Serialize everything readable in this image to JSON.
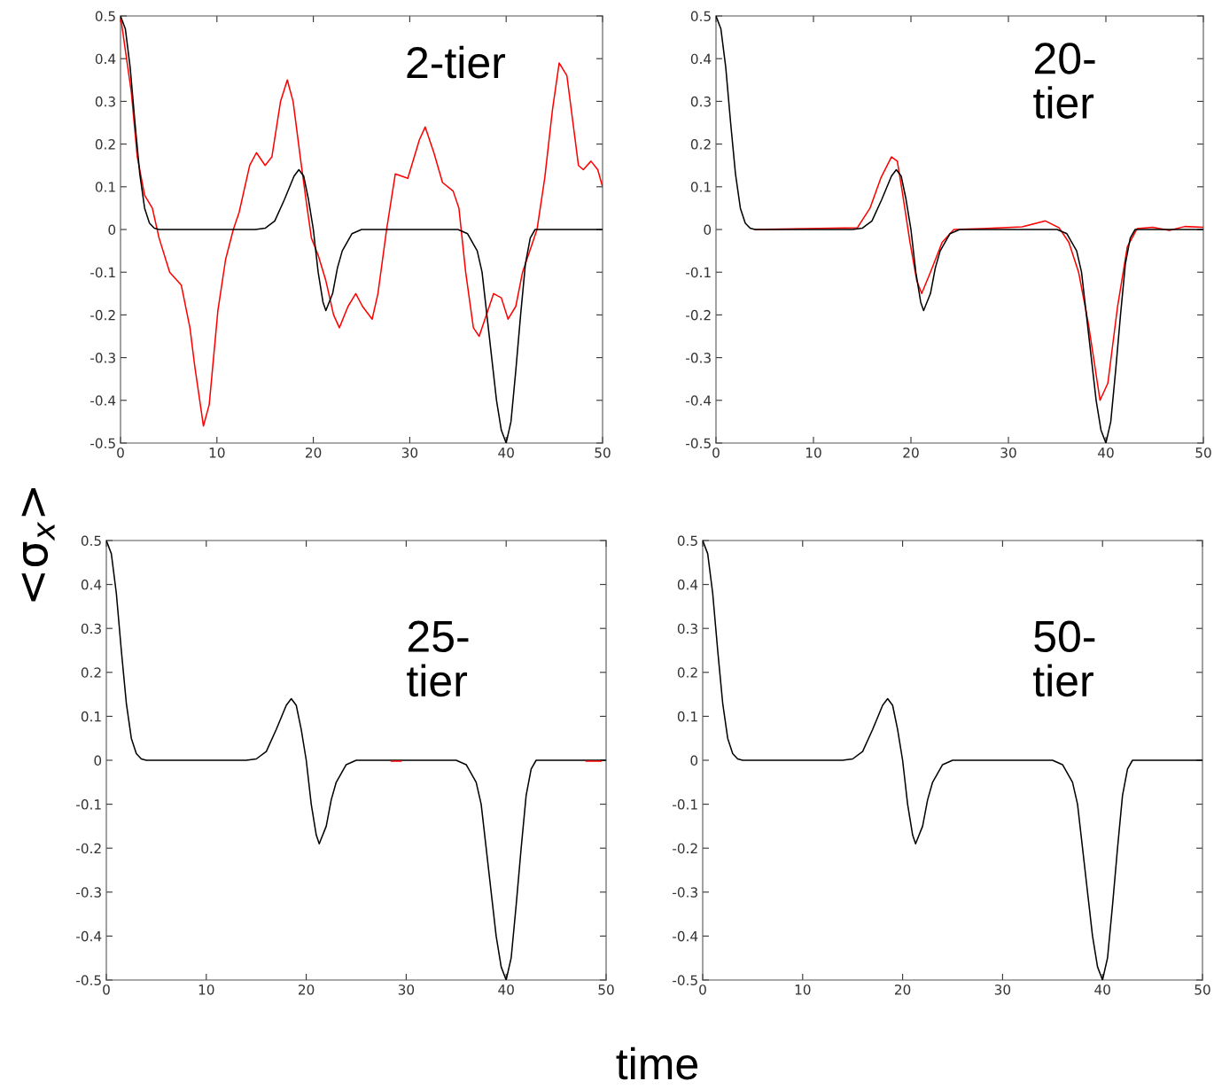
{
  "chart_data": [
    {
      "type": "line",
      "ylabel": "<σ$_{x}$>",
      "xlabel": "time",
      "annotations": [
        "2-tier"
      ],
      "xlim": [
        0,
        50
      ],
      "ylim": [
        -0.5,
        0.5
      ],
      "xticks": [
        0,
        10,
        20,
        30,
        40,
        50
      ],
      "yticks": [
        -0.5,
        -0.4,
        -0.3,
        -0.2,
        -0.1,
        0,
        0.1,
        0.2,
        0.3,
        0.4,
        0.5
      ],
      "grid": false,
      "series": [
        {
          "color": "#ff0000",
          "x": [
            0,
            1.13,
            1.74,
            2.5,
            3.3,
            4.0,
            5.1,
            6.3,
            7.2,
            7.7,
            8.6,
            9.2,
            10.1,
            10.9,
            11.7,
            12.3,
            13.4,
            14.1,
            15.0,
            15.7,
            16.6,
            17.3,
            17.9,
            18.7,
            19.3,
            19.8,
            20.5,
            21.3,
            22.1,
            22.7,
            23.6,
            24.4,
            25.1,
            26.1,
            26.7,
            27.6,
            28.5,
            29.8,
            31.0,
            31.6,
            32.5,
            33.4,
            34.5,
            35.1,
            35.8,
            36.6,
            37.2,
            37.8,
            38.7,
            39.5,
            40.2,
            41.0,
            41.7,
            43.2,
            44.0,
            44.8,
            45.5,
            46.3,
            47.5,
            48.0,
            48.8,
            49.5,
            50
          ],
          "values": [
            0.5,
            0.32,
            0.17,
            0.08,
            0.05,
            -0.02,
            -0.1,
            -0.13,
            -0.23,
            -0.32,
            -0.46,
            -0.41,
            -0.19,
            -0.07,
            0,
            0.04,
            0.15,
            0.18,
            0.15,
            0.17,
            0.3,
            0.35,
            0.3,
            0.16,
            0.06,
            -0.02,
            -0.06,
            -0.12,
            -0.2,
            -0.23,
            -0.18,
            -0.15,
            -0.18,
            -0.21,
            -0.15,
            0,
            0.13,
            0.12,
            0.21,
            0.24,
            0.18,
            0.11,
            0.09,
            0.05,
            -0.1,
            -0.23,
            -0.25,
            -0.21,
            -0.15,
            -0.16,
            -0.21,
            -0.18,
            -0.1,
            0,
            0.12,
            0.28,
            0.39,
            0.36,
            0.15,
            0.14,
            0.16,
            0.14,
            0.1
          ]
        },
        {
          "color": "#000000",
          "x": [
            0,
            0.5,
            1,
            1.5,
            2,
            2.5,
            3,
            3.5,
            4,
            14,
            15,
            16,
            17,
            18,
            18.5,
            19,
            19.5,
            20,
            20.5,
            21,
            21.3,
            22,
            22.5,
            23,
            24,
            25,
            35,
            36,
            37,
            37.5,
            38,
            38.5,
            39,
            39.5,
            40,
            40.5,
            41,
            41.5,
            42,
            42.5,
            43,
            50
          ],
          "values": [
            0.5,
            0.47,
            0.38,
            0.25,
            0.13,
            0.05,
            0.015,
            0.003,
            0,
            0,
            0.003,
            0.02,
            0.07,
            0.125,
            0.14,
            0.125,
            0.07,
            0,
            -0.1,
            -0.17,
            -0.19,
            -0.15,
            -0.09,
            -0.05,
            -0.01,
            0,
            0,
            -0.01,
            -0.05,
            -0.1,
            -0.2,
            -0.3,
            -0.4,
            -0.47,
            -0.5,
            -0.45,
            -0.33,
            -0.2,
            -0.08,
            -0.02,
            0,
            0
          ]
        }
      ]
    },
    {
      "type": "line",
      "annotations": [
        "20-\ntier"
      ],
      "xlim": [
        0,
        50
      ],
      "ylim": [
        -0.5,
        0.5
      ],
      "xticks": [
        0,
        10,
        20,
        30,
        40,
        50
      ],
      "yticks": [
        -0.5,
        -0.4,
        -0.3,
        -0.2,
        -0.1,
        0,
        0.1,
        0.2,
        0.3,
        0.4,
        0.5
      ],
      "grid": false,
      "series": [
        {
          "color": "#ff0000",
          "x": [
            4,
            14.5,
            15.8,
            16.9,
            18.0,
            18.6,
            19.1,
            19.9,
            20.6,
            21.1,
            22.0,
            23.2,
            24.4,
            27.3,
            31.4,
            33.8,
            35.2,
            36.2,
            37.2,
            38.2,
            39.4,
            40.2,
            41.2,
            42.2,
            43.2,
            44.8,
            46.5,
            48.1,
            50
          ],
          "values": [
            0,
            0.004,
            0.05,
            0.12,
            0.17,
            0.16,
            0.09,
            -0.03,
            -0.12,
            -0.15,
            -0.1,
            -0.03,
            0,
            0.002,
            0.006,
            0.02,
            0.004,
            -0.03,
            -0.1,
            -0.22,
            -0.4,
            -0.36,
            -0.18,
            -0.04,
            0.002,
            0.005,
            -0.002,
            0.007,
            0.005
          ]
        },
        {
          "color": "#000000",
          "x": [
            0,
            0.5,
            1,
            1.5,
            2,
            2.5,
            3,
            3.5,
            4,
            14,
            15,
            16,
            17,
            18,
            18.5,
            19,
            19.5,
            20,
            20.5,
            21,
            21.3,
            22,
            22.5,
            23,
            24,
            25,
            35,
            36,
            37,
            37.5,
            38,
            38.5,
            39,
            39.5,
            40,
            40.5,
            41,
            41.5,
            42,
            42.5,
            43,
            50
          ],
          "values": [
            0.5,
            0.47,
            0.38,
            0.25,
            0.13,
            0.05,
            0.015,
            0.003,
            0,
            0,
            0.003,
            0.02,
            0.07,
            0.125,
            0.14,
            0.125,
            0.07,
            0,
            -0.1,
            -0.17,
            -0.19,
            -0.15,
            -0.09,
            -0.05,
            -0.01,
            0,
            0,
            -0.01,
            -0.05,
            -0.1,
            -0.2,
            -0.3,
            -0.4,
            -0.47,
            -0.5,
            -0.45,
            -0.33,
            -0.2,
            -0.08,
            -0.02,
            0,
            0
          ]
        }
      ]
    },
    {
      "type": "line",
      "annotations": [
        "25-\ntier"
      ],
      "xlim": [
        0,
        50
      ],
      "ylim": [
        -0.5,
        0.5
      ],
      "xticks": [
        0,
        10,
        20,
        30,
        40,
        50
      ],
      "yticks": [
        -0.5,
        -0.4,
        -0.3,
        -0.2,
        -0.1,
        0,
        0.1,
        0.2,
        0.3,
        0.4,
        0.5
      ],
      "grid": false,
      "series": [
        {
          "color": "#000000",
          "x": [
            0,
            0.5,
            1,
            1.5,
            2,
            2.5,
            3,
            3.5,
            4,
            14,
            15,
            16,
            17,
            18,
            18.5,
            19,
            19.5,
            20,
            20.5,
            21,
            21.3,
            22,
            22.5,
            23,
            24,
            25,
            35,
            36,
            37,
            37.5,
            38,
            38.5,
            39,
            39.5,
            40,
            40.5,
            41,
            41.5,
            42,
            42.5,
            43,
            50
          ],
          "values": [
            0.5,
            0.47,
            0.38,
            0.25,
            0.13,
            0.05,
            0.015,
            0.003,
            0,
            0,
            0.003,
            0.02,
            0.07,
            0.125,
            0.14,
            0.125,
            0.07,
            0,
            -0.1,
            -0.17,
            -0.19,
            -0.15,
            -0.09,
            -0.05,
            -0.01,
            0,
            0,
            -0.01,
            -0.05,
            -0.1,
            -0.2,
            -0.3,
            -0.4,
            -0.47,
            -0.5,
            -0.45,
            -0.33,
            -0.2,
            -0.08,
            -0.02,
            0,
            0
          ]
        },
        {
          "color": "#ff0000",
          "x": [
            28.5,
            29.5,
            39,
            48,
            49.5
          ],
          "values": [
            -0.002,
            -0.002,
            null,
            -0.002,
            -0.002
          ]
        }
      ]
    },
    {
      "type": "line",
      "annotations": [
        "50-\ntier"
      ],
      "xlim": [
        0,
        50
      ],
      "ylim": [
        -0.5,
        0.5
      ],
      "xticks": [
        0,
        10,
        20,
        30,
        40,
        50
      ],
      "yticks": [
        -0.5,
        -0.4,
        -0.3,
        -0.2,
        -0.1,
        0,
        0.1,
        0.2,
        0.3,
        0.4,
        0.5
      ],
      "grid": false,
      "series": [
        {
          "color": "#000000",
          "x": [
            0,
            0.5,
            1,
            1.5,
            2,
            2.5,
            3,
            3.5,
            4,
            14,
            15,
            16,
            17,
            18,
            18.5,
            19,
            19.5,
            20,
            20.5,
            21,
            21.3,
            22,
            22.5,
            23,
            24,
            25,
            35,
            36,
            37,
            37.5,
            38,
            38.5,
            39,
            39.5,
            40,
            40.5,
            41,
            41.5,
            42,
            42.5,
            43,
            50
          ],
          "values": [
            0.5,
            0.47,
            0.38,
            0.25,
            0.13,
            0.05,
            0.015,
            0.003,
            0,
            0,
            0.003,
            0.02,
            0.07,
            0.125,
            0.14,
            0.125,
            0.07,
            0,
            -0.1,
            -0.17,
            -0.19,
            -0.15,
            -0.09,
            -0.05,
            -0.01,
            0,
            0,
            -0.01,
            -0.05,
            -0.1,
            -0.2,
            -0.3,
            -0.4,
            -0.47,
            -0.5,
            -0.45,
            -0.33,
            -0.2,
            -0.08,
            -0.02,
            0,
            0
          ]
        }
      ]
    }
  ]
}
